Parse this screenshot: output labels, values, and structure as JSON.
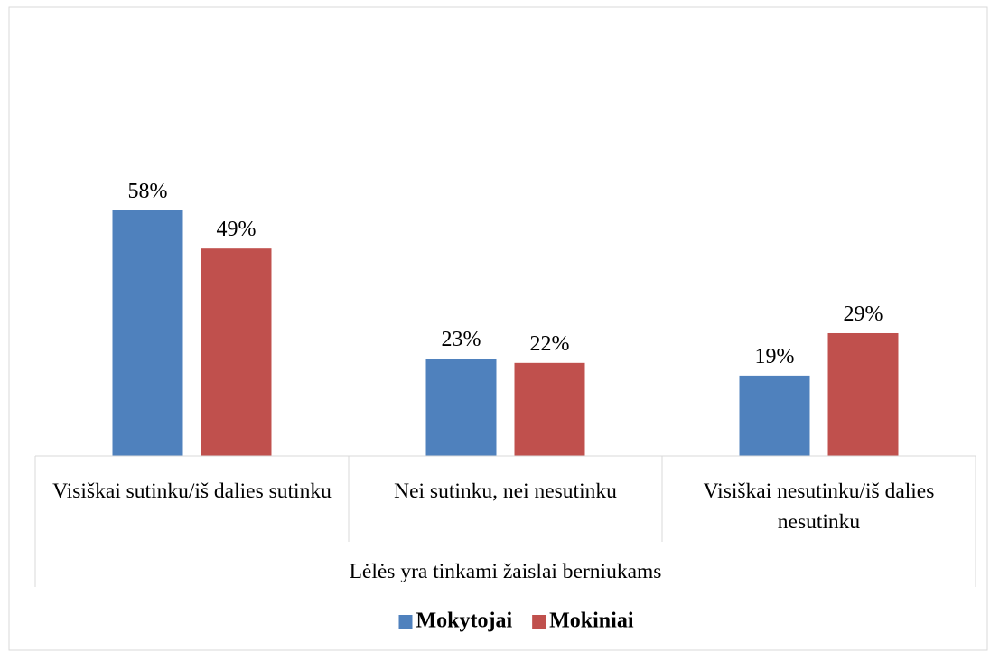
{
  "chart_data": {
    "type": "bar",
    "categories": [
      "Visiškai sutinku/iš dalies sutinku",
      "Nei sutinku, nei nesutinku",
      "Visiškai nesutinku/iš dalies nesutinku"
    ],
    "xlabel": "Lėlės yra tinkami žaislai berniukams",
    "series": [
      {
        "name": "Mokytojai",
        "color": "#4f81bd",
        "values": [
          58,
          23,
          19
        ],
        "value_labels": [
          "58%",
          "23%",
          "19%"
        ]
      },
      {
        "name": "Mokiniai",
        "color": "#c0504d",
        "values": [
          49,
          22,
          29
        ],
        "value_labels": [
          "49%",
          "22%",
          "29%"
        ]
      }
    ],
    "legend": "bottom"
  }
}
